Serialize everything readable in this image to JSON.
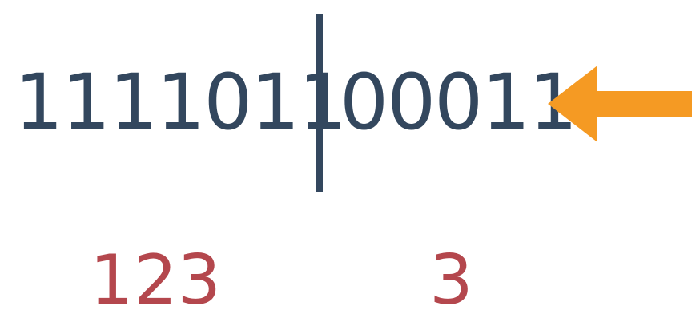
{
  "binary": {
    "left_bits": "1111011",
    "right_bits": "00011"
  },
  "decimal": {
    "left_value": "123",
    "right_value": "3"
  },
  "colors": {
    "binary_text": "#33475e",
    "divider": "#33475e",
    "decimal_text": "#b4474d",
    "arrow": "#f59a23"
  },
  "icons": {
    "pointer": "left-arrow-icon"
  }
}
